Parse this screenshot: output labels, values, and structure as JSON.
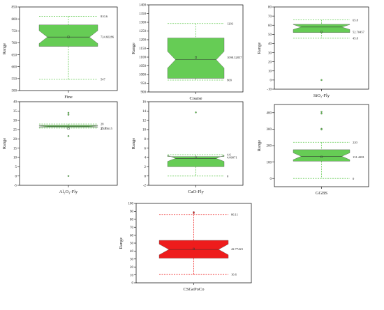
{
  "chart_data": [
    {
      "type": "box",
      "xlabel": "Fine",
      "ylabel": "Range",
      "ylim": [
        500,
        850
      ],
      "yticks": [
        500,
        550,
        600,
        650,
        700,
        750,
        800,
        850
      ],
      "min": 547,
      "q1": 685,
      "median": 724,
      "q3": 775,
      "max": 810.6,
      "mean": 724.60286,
      "max_label": "810.6",
      "mean_label": "724.60286",
      "min_label": "547",
      "outliers": [],
      "color": "#66cc55"
    },
    {
      "type": "box",
      "xlabel": "Coarse",
      "ylabel": "Range",
      "ylim": [
        900,
        1400
      ],
      "yticks": [
        900,
        950,
        1000,
        1050,
        1100,
        1150,
        1200,
        1250,
        1300,
        1350,
        1400
      ],
      "min": 968,
      "q1": 978,
      "median": 1085,
      "q3": 1210,
      "max": 1293,
      "mean": 1098.32857,
      "max_label": "1293",
      "mean_label": "1098.32857",
      "min_label": "968",
      "outliers": [],
      "color": "#66cc55"
    },
    {
      "type": "box",
      "xlabel": "SiO₂-Fly",
      "ylabel": "Range",
      "ylim": [
        -10,
        80
      ],
      "yticks": [
        -10,
        0,
        10,
        20,
        30,
        40,
        50,
        60,
        70,
        80
      ],
      "min": 45.8,
      "q1": 52,
      "median": 58,
      "q3": 61,
      "max": 65.8,
      "mean": 52.70457,
      "max_label": "65.8",
      "mean_label": "52.70457",
      "min_label": "45.8",
      "outliers": [
        0
      ],
      "color": "#66cc55"
    },
    {
      "type": "box",
      "xlabel": "Al₂O₃-Fly",
      "ylabel": "Range",
      "ylim": [
        -5,
        40
      ],
      "yticks": [
        -5,
        0,
        5,
        10,
        15,
        20,
        25,
        30,
        35,
        40
      ],
      "min": 25.8,
      "q1": 26.3,
      "median": 26.8,
      "q3": 27.3,
      "max": 28,
      "mean": 25.55615,
      "max_label": "28",
      "mean_label": "25.55615",
      "min_label": "25.8",
      "outliers": [
        34,
        33,
        21.5,
        0
      ],
      "color": "#66cc55"
    },
    {
      "type": "box",
      "xlabel": "CaO-Fly",
      "ylabel": "Range",
      "ylim": [
        -2,
        16
      ],
      "yticks": [
        -2,
        0,
        2,
        4,
        6,
        8,
        10,
        12,
        14,
        16
      ],
      "min": 0,
      "q1": 2,
      "median": 3.8,
      "q3": 4.2,
      "max": 4.6,
      "mean": 4.00071,
      "max_label": "4.6",
      "mean_label": "4.00071",
      "min_label": "0",
      "outliers": [
        13.7
      ],
      "color": "#66cc55"
    },
    {
      "type": "box",
      "xlabel": "GGBS",
      "ylabel": "Range",
      "ylim": [
        -50,
        450
      ],
      "yticks": [
        0,
        100,
        200,
        300,
        400
      ],
      "min": 0,
      "q1": 105,
      "median": 135,
      "q3": 175,
      "max": 220,
      "mean": 131.4281,
      "max_label": "220",
      "mean_label": "131.4281",
      "min_label": "0",
      "outliers": [
        405,
        395,
        302,
        298
      ],
      "color": "#66cc55"
    },
    {
      "type": "box",
      "xlabel": "CSGePoCo",
      "ylabel": "Range",
      "ylim": [
        0,
        100
      ],
      "yticks": [
        0,
        10,
        20,
        30,
        40,
        50,
        60,
        70,
        80,
        90,
        100
      ],
      "min": 10.6,
      "q1": 31,
      "median": 42,
      "q3": 53.5,
      "max": 86.11,
      "mean": 42.77423,
      "max_label": "86.11",
      "mean_label": "42.77423",
      "min_label": "10.6",
      "outliers": [
        89,
        88
      ],
      "color": "#ee1c1c"
    }
  ]
}
